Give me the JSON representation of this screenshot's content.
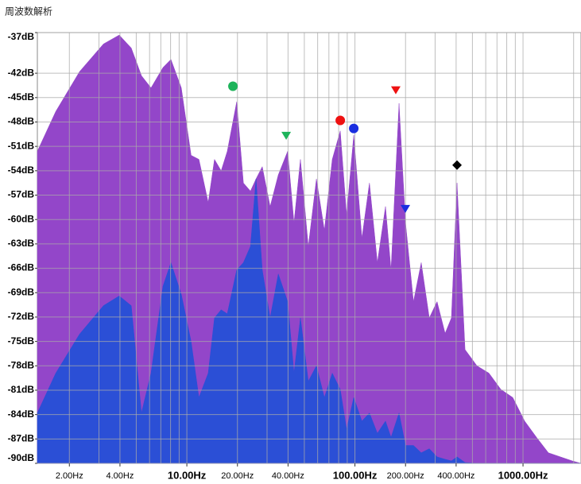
{
  "title": "周波数解析",
  "chart_data": {
    "type": "area",
    "xscale": "log",
    "grid": true,
    "xlim": [
      1.29,
      2213
    ],
    "ylim": [
      -90,
      -37
    ],
    "xticks": [
      {
        "value": 2,
        "label": "2.00Hz"
      },
      {
        "value": 4,
        "label": "4.00Hz"
      },
      {
        "value": 10,
        "label": "10.00Hz"
      },
      {
        "value": 20,
        "label": "20.00Hz"
      },
      {
        "value": 40,
        "label": "40.00Hz"
      },
      {
        "value": 100,
        "label": "100.00Hz"
      },
      {
        "value": 200,
        "label": "200.00Hz"
      },
      {
        "value": 400,
        "label": "400.00Hz"
      },
      {
        "value": 1000,
        "label": "1000.00Hz"
      }
    ],
    "xgrid": [
      2,
      3,
      4,
      5,
      6,
      7,
      8,
      9,
      10,
      20,
      30,
      40,
      50,
      60,
      70,
      80,
      90,
      100,
      200,
      300,
      400,
      500,
      600,
      700,
      800,
      900,
      1000,
      2000
    ],
    "yticks": [
      {
        "value": -37,
        "label": "-37dB"
      },
      {
        "value": -42,
        "label": "-42dB"
      },
      {
        "value": -45,
        "label": "-45dB"
      },
      {
        "value": -48,
        "label": "-48dB"
      },
      {
        "value": -51,
        "label": "-51dB"
      },
      {
        "value": -54,
        "label": "-54dB"
      },
      {
        "value": -57,
        "label": "-57dB"
      },
      {
        "value": -60,
        "label": "-60dB"
      },
      {
        "value": -63,
        "label": "-63dB"
      },
      {
        "value": -66,
        "label": "-66dB"
      },
      {
        "value": -69,
        "label": "-69dB"
      },
      {
        "value": -72,
        "label": "-72dB"
      },
      {
        "value": -75,
        "label": "-75dB"
      },
      {
        "value": -78,
        "label": "-78dB"
      },
      {
        "value": -81,
        "label": "-81dB"
      },
      {
        "value": -84,
        "label": "-84dB"
      },
      {
        "value": -87,
        "label": "-87dB"
      },
      {
        "value": -90,
        "label": "-90dB"
      }
    ],
    "x": [
      1.29,
      1.66,
      2.3,
      3.19,
      3.96,
      4.67,
      5.37,
      6.12,
      7.21,
      8.04,
      9.27,
      10.6,
      11.8,
      13.4,
      14.6,
      16.0,
      17.4,
      19.8,
      21.7,
      23.9,
      25.8,
      28.1,
      31.3,
      35.0,
      39.8,
      43.4,
      47.4,
      52.8,
      59.0,
      65.8,
      73.3,
      81.8,
      89.2,
      98.4,
      110,
      122,
      136,
      152,
      164,
      183,
      200,
      223,
      248,
      277,
      308,
      344,
      375,
      405,
      452,
      532,
      627,
      738,
      869,
      1023,
      1203,
      1416,
      1667,
      1963,
      2213
    ],
    "series": [
      {
        "color": "#9346c9",
        "values": [
          -51.6,
          -46.7,
          -41.8,
          -38.4,
          -37.3,
          -38.9,
          -42.3,
          -43.8,
          -41.3,
          -40.3,
          -43.8,
          -52.1,
          -52.6,
          -57.9,
          -52.6,
          -54.0,
          -51.6,
          -45.5,
          -55.5,
          -56.5,
          -55.0,
          -53.5,
          -58.4,
          -54.5,
          -51.6,
          -60.4,
          -52.6,
          -63.3,
          -55.0,
          -61.3,
          -52.6,
          -49.1,
          -59.4,
          -49.6,
          -62.3,
          -55.5,
          -65.3,
          -58.4,
          -66.2,
          -45.7,
          -60.4,
          -70.1,
          -65.3,
          -72.1,
          -70.1,
          -74.0,
          -72.1,
          -55.5,
          -76.0,
          -78.0,
          -78.9,
          -80.9,
          -81.9,
          -84.8,
          -86.8,
          -88.7,
          -89.2,
          -89.7,
          -90
        ]
      },
      {
        "color": "#2b4fd6",
        "values": [
          -83.8,
          -78.9,
          -74.1,
          -70.6,
          -69.4,
          -70.6,
          -83.8,
          -78.9,
          -68.2,
          -65.3,
          -69.2,
          -75.0,
          -81.9,
          -78.9,
          -72.1,
          -71.1,
          -71.6,
          -66.2,
          -65.3,
          -63.3,
          -55.0,
          -66.2,
          -72.1,
          -66.7,
          -70.1,
          -78.9,
          -72.1,
          -79.9,
          -78.0,
          -81.9,
          -78.9,
          -80.9,
          -85.8,
          -81.9,
          -84.8,
          -83.8,
          -86.3,
          -84.8,
          -86.8,
          -83.8,
          -87.8,
          -87.8,
          -88.7,
          -88.2,
          -89.2,
          -89.5,
          -89.7,
          -89.2,
          -89.9,
          -90,
          -90,
          -90,
          -90,
          -90,
          -90,
          -90,
          -90,
          -90,
          -90
        ]
      }
    ],
    "markers": [
      {
        "x": 18.8,
        "y": -43.6,
        "color": "#1db35a",
        "shape": "circle"
      },
      {
        "x": 39.0,
        "y": -49.7,
        "color": "#1db35a",
        "shape": "triangle"
      },
      {
        "x": 81.8,
        "y": -47.8,
        "color": "#ee1111",
        "shape": "circle"
      },
      {
        "x": 98.4,
        "y": -48.8,
        "color": "#1a2ee0",
        "shape": "circle"
      },
      {
        "x": 175,
        "y": -44.1,
        "color": "#ee1111",
        "shape": "triangle"
      },
      {
        "x": 199.5,
        "y": -58.7,
        "color": "#1a2ee0",
        "shape": "triangle"
      },
      {
        "x": 405,
        "y": -53.3,
        "color": "#000000",
        "shape": "diamond"
      }
    ]
  }
}
